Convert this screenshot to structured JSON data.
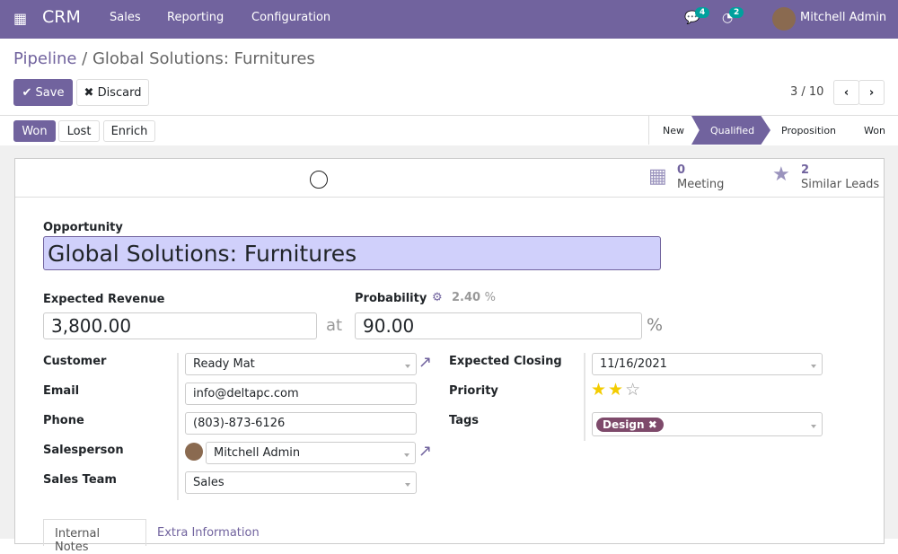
{
  "nav": {
    "app": "CRM",
    "menus": [
      "Sales",
      "Reporting",
      "Configuration"
    ],
    "messages_count": "4",
    "activities_count": "2",
    "user": "Mitchell Admin"
  },
  "breadcrumb": {
    "parent": "Pipeline",
    "current": "Global Solutions: Furnitures"
  },
  "toolbar": {
    "save": "Save",
    "discard": "Discard",
    "pager": "3 / 10"
  },
  "actions": [
    "Won",
    "Lost",
    "Enrich"
  ],
  "stages": {
    "items": [
      "New",
      "Qualified",
      "Proposition",
      "Won"
    ],
    "active": "Qualified"
  },
  "smart_buttons": [
    {
      "count": "0",
      "label": "Meeting",
      "icon": "calendar-icon"
    },
    {
      "count": "2",
      "label": "Similar Leads",
      "icon": "star-icon"
    }
  ],
  "form": {
    "opportunity_label": "Opportunity",
    "name": "Global Solutions: Furnitures",
    "revenue_label": "Expected Revenue",
    "revenue": "3,800.00",
    "at": "at",
    "probability_label": "Probability",
    "auto_probability": "2.40",
    "pct": "%",
    "probability": "90.00",
    "customer_label": "Customer",
    "customer": "Ready Mat",
    "email_label": "Email",
    "email": "info@deltapc.com",
    "phone_label": "Phone",
    "phone": "(803)-873-6126",
    "salesperson_label": "Salesperson",
    "salesperson": "Mitchell Admin",
    "team_label": "Sales Team",
    "team": "Sales",
    "closing_label": "Expected Closing",
    "closing": "11/16/2021",
    "priority_label": "Priority",
    "priority": 2,
    "priority_max": 3,
    "tags_label": "Tags",
    "tag": "Design",
    "tag_color": "#7e4a6b"
  },
  "tabs": [
    "Internal Notes",
    "Extra Information"
  ],
  "colors": {
    "brand": "#71639e",
    "highlight": "#d0d0fb",
    "star": "#f3cc00"
  }
}
